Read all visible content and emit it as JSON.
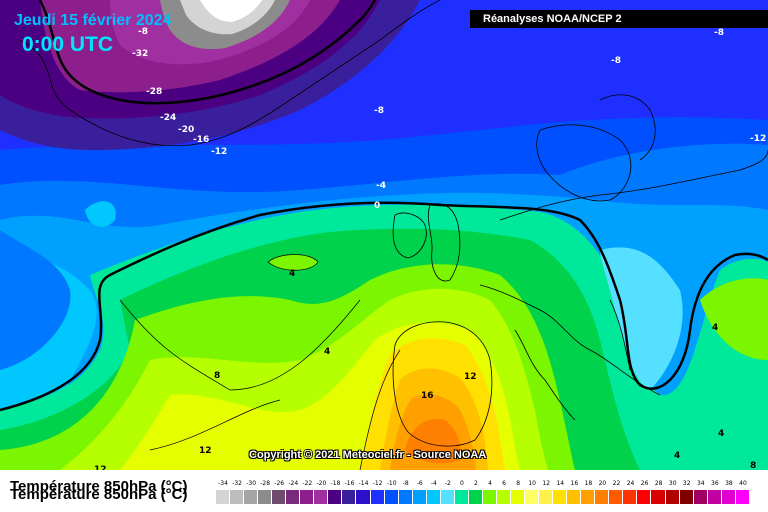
{
  "header": {
    "date": "Jeudi 15 février 2024",
    "time": "0:00 UTC"
  },
  "source": "Réanalyses NOAA/NCEP 2",
  "copyright": "Copyright © 2021 Meteociel.fr - Source NOAA",
  "legend": {
    "title": "Température 850hPa (°C)",
    "ticks": [
      "-34",
      "-32",
      "-30",
      "-28",
      "-26",
      "-24",
      "-22",
      "-20",
      "-18",
      "-16",
      "-14",
      "-12",
      "-10",
      "-8",
      "-6",
      "-4",
      "-2",
      "0",
      "2",
      "4",
      "6",
      "8",
      "10",
      "12",
      "14",
      "16",
      "18",
      "20",
      "22",
      "24",
      "26",
      "28",
      "30",
      "32",
      "34",
      "36",
      "38",
      "40"
    ],
    "colors": [
      "#d4d4d4",
      "#bdbdbd",
      "#a5a5a5",
      "#8c8c8c",
      "#6e4c6e",
      "#7a2a7a",
      "#8d1f8d",
      "#a030a0",
      "#4b0082",
      "#3a1f9c",
      "#2c0fc8",
      "#1f2fff",
      "#0050ff",
      "#0078ff",
      "#00a0ff",
      "#00c8ff",
      "#55e0ff",
      "#00e89a",
      "#00d24b",
      "#7bf500",
      "#b6ff00",
      "#e5ff00",
      "#ffff66",
      "#fff04b",
      "#ffe000",
      "#ffc000",
      "#ff9f00",
      "#ff7f00",
      "#ff5a00",
      "#ff3300",
      "#ff0000",
      "#d90000",
      "#b00000",
      "#800000",
      "#a00060",
      "#c000a0",
      "#e000d0",
      "#ff00ff"
    ]
  },
  "isotherm_labels": [
    "-8",
    "-32",
    "-28",
    "-24",
    "-20",
    "-16",
    "-12",
    "-8",
    "-8",
    "-8",
    "-12",
    "-4",
    "0",
    "4",
    "4",
    "4",
    "8",
    "12",
    "16",
    "12",
    "12",
    "4",
    "4",
    "8"
  ]
}
